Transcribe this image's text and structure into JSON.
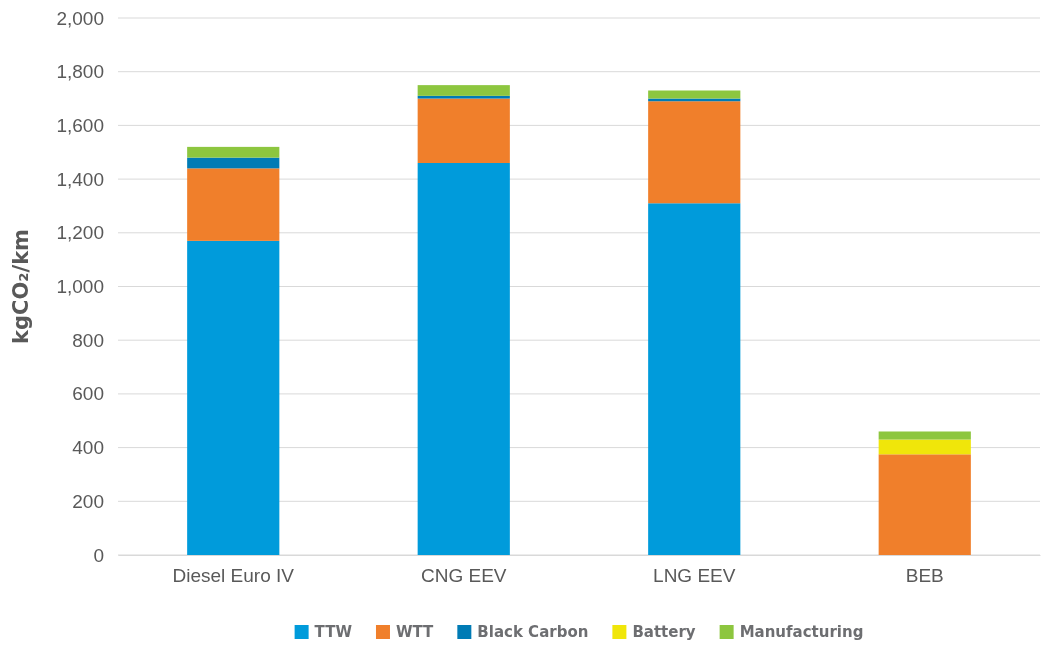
{
  "chart_data": {
    "type": "bar",
    "stacked": true,
    "ylabel": "kgCO₂/km",
    "categories": [
      "Diesel Euro IV",
      "CNG EEV",
      "LNG EEV",
      "BEB"
    ],
    "series": [
      {
        "name": "TTW",
        "color": "#009bdb",
        "values": [
          1170,
          1460,
          1310,
          0
        ]
      },
      {
        "name": "WTT",
        "color": "#f07f2b",
        "values": [
          270,
          240,
          380,
          375
        ]
      },
      {
        "name": "Black Carbon",
        "color": "#007bb5",
        "values": [
          40,
          10,
          10,
          0
        ]
      },
      {
        "name": "Battery",
        "color": "#f0e60a",
        "values": [
          0,
          0,
          0,
          55
        ]
      },
      {
        "name": "Manufacturing",
        "color": "#8dc63f",
        "values": [
          40,
          40,
          30,
          30
        ]
      }
    ],
    "ylim": [
      0,
      2000
    ],
    "yticks": [
      0,
      {
        "value": 200,
        "label": "200"
      },
      {
        "value": 400,
        "label": "400"
      },
      {
        "value": 600,
        "label": "600"
      },
      {
        "value": 800,
        "label": "800"
      },
      {
        "value": 1000,
        "label": "1,000"
      },
      {
        "value": 1200,
        "label": "1,200"
      },
      {
        "value": 1400,
        "label": "1,400"
      },
      {
        "value": 1600,
        "label": "1,600"
      },
      {
        "value": 1800,
        "label": "1,800"
      },
      {
        "value": 2000,
        "label": "2,000"
      }
    ],
    "grid": "y",
    "legend": "bottom"
  }
}
